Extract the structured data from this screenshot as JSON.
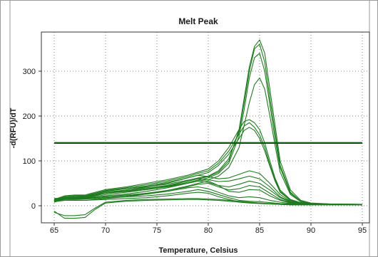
{
  "chart_data": {
    "type": "line",
    "title": "Melt Peak",
    "xlabel": "Temperature, Celsius",
    "ylabel": "-d(RFU)/dT",
    "xlim": [
      65,
      95
    ],
    "ylim": [
      -30,
      380
    ],
    "x_ticks": [
      "65",
      "70",
      "75",
      "80",
      "85",
      "90",
      "95"
    ],
    "y_ticks": [
      "0",
      "100",
      "200",
      "300"
    ],
    "grid": true,
    "threshold": 140,
    "line_color": "#1e7b1e",
    "threshold_color": "#0f5a0f",
    "series": [
      {
        "x": [
          65,
          66,
          67,
          68,
          69,
          70,
          72,
          74,
          76,
          78,
          79,
          80,
          81,
          82,
          83,
          83.5,
          84,
          84.5,
          85,
          85.5,
          86,
          86.5,
          87,
          88,
          89,
          90,
          92,
          95
        ],
        "y": [
          10,
          18,
          20,
          20,
          25,
          30,
          35,
          40,
          45,
          55,
          60,
          65,
          75,
          100,
          170,
          240,
          310,
          355,
          370,
          340,
          260,
          180,
          100,
          35,
          12,
          6,
          4,
          3
        ]
      },
      {
        "x": [
          65,
          66,
          67,
          68,
          69,
          70,
          72,
          74,
          76,
          78,
          79,
          80,
          81,
          82,
          83,
          83.5,
          84,
          84.5,
          85,
          85.5,
          86,
          86.5,
          87,
          88,
          89,
          90,
          92,
          95
        ],
        "y": [
          12,
          20,
          22,
          22,
          28,
          33,
          38,
          43,
          48,
          57,
          62,
          66,
          78,
          105,
          165,
          230,
          300,
          350,
          360,
          320,
          240,
          165,
          90,
          30,
          10,
          5,
          4,
          3
        ]
      },
      {
        "x": [
          65,
          66,
          67,
          68,
          69,
          70,
          72,
          74,
          76,
          78,
          79,
          80,
          81,
          82,
          83,
          83.5,
          84,
          84.5,
          85,
          85.5,
          86,
          86.5,
          87,
          88,
          89,
          90,
          92,
          95
        ],
        "y": [
          8,
          15,
          17,
          18,
          22,
          28,
          33,
          38,
          43,
          52,
          57,
          62,
          72,
          95,
          155,
          215,
          285,
          330,
          340,
          300,
          225,
          150,
          85,
          28,
          10,
          5,
          3,
          3
        ]
      },
      {
        "x": [
          65,
          66,
          67,
          68,
          69,
          70,
          72,
          74,
          76,
          78,
          79,
          80,
          81,
          82,
          83,
          83.5,
          84,
          84.5,
          85,
          85.5,
          86,
          86.5,
          87,
          88,
          89,
          90,
          92,
          95
        ],
        "y": [
          10,
          16,
          18,
          19,
          24,
          28,
          32,
          36,
          42,
          50,
          55,
          58,
          66,
          85,
          130,
          180,
          230,
          270,
          285,
          260,
          200,
          135,
          75,
          25,
          9,
          5,
          3,
          3
        ]
      },
      {
        "x": [
          65,
          66,
          67,
          68,
          69,
          70,
          72,
          74,
          76,
          78,
          79,
          80,
          81,
          82,
          83,
          83.5,
          84,
          84.5,
          85,
          85.5,
          86,
          86.5,
          87,
          88,
          89,
          90,
          92,
          95
        ],
        "y": [
          14,
          22,
          24,
          24,
          30,
          36,
          42,
          50,
          58,
          68,
          75,
          82,
          100,
          130,
          170,
          188,
          192,
          185,
          170,
          140,
          100,
          62,
          35,
          14,
          7,
          4,
          3,
          3
        ]
      },
      {
        "x": [
          65,
          66,
          67,
          68,
          69,
          70,
          72,
          74,
          76,
          78,
          79,
          80,
          81,
          82,
          83,
          83.5,
          84,
          84.5,
          85,
          85.5,
          86,
          86.5,
          87,
          88,
          89,
          90,
          92,
          95
        ],
        "y": [
          12,
          20,
          22,
          22,
          28,
          34,
          40,
          47,
          55,
          65,
          72,
          78,
          95,
          122,
          160,
          178,
          185,
          175,
          158,
          130,
          92,
          58,
          32,
          12,
          6,
          4,
          3,
          3
        ]
      },
      {
        "x": [
          65,
          66,
          67,
          68,
          69,
          70,
          72,
          74,
          76,
          78,
          79,
          80,
          81,
          82,
          83,
          83.5,
          84,
          84.5,
          85,
          85.5,
          86,
          86.5,
          87,
          88,
          89,
          90,
          92,
          95
        ],
        "y": [
          11,
          18,
          20,
          21,
          26,
          32,
          38,
          44,
          52,
          62,
          68,
          74,
          90,
          115,
          150,
          168,
          175,
          168,
          150,
          122,
          88,
          55,
          30,
          12,
          6,
          4,
          3,
          3
        ]
      },
      {
        "x": [
          65,
          66,
          67,
          68,
          69,
          70,
          72,
          74,
          76,
          78,
          79,
          80,
          81,
          82,
          83,
          84,
          85,
          86,
          87,
          88,
          90,
          95
        ],
        "y": [
          15,
          18,
          18,
          18,
          22,
          28,
          35,
          42,
          50,
          62,
          68,
          65,
          60,
          62,
          70,
          78,
          72,
          50,
          25,
          10,
          4,
          3
        ]
      },
      {
        "x": [
          65,
          66,
          67,
          68,
          69,
          70,
          72,
          74,
          76,
          78,
          79,
          80,
          81,
          82,
          83,
          84,
          85,
          86,
          87,
          88,
          90,
          95
        ],
        "y": [
          12,
          16,
          16,
          17,
          20,
          25,
          30,
          36,
          44,
          55,
          60,
          58,
          54,
          55,
          60,
          66,
          60,
          42,
          20,
          9,
          4,
          3
        ]
      },
      {
        "x": [
          65,
          66,
          67,
          68,
          69,
          70,
          72,
          74,
          76,
          78,
          79,
          80,
          81,
          82,
          83,
          84,
          85,
          86,
          87,
          88,
          90,
          95
        ],
        "y": [
          10,
          14,
          14,
          15,
          18,
          22,
          26,
          32,
          40,
          50,
          55,
          52,
          45,
          42,
          48,
          55,
          50,
          35,
          18,
          8,
          4,
          3
        ]
      },
      {
        "x": [
          65,
          66,
          67,
          68,
          69,
          70,
          72,
          74,
          76,
          78,
          79,
          80,
          81,
          82,
          83,
          84,
          85,
          86,
          87,
          88,
          90,
          95
        ],
        "y": [
          14,
          16,
          16,
          16,
          18,
          20,
          24,
          28,
          34,
          42,
          48,
          50,
          42,
          35,
          38,
          45,
          42,
          28,
          14,
          7,
          3,
          3
        ]
      },
      {
        "x": [
          65,
          66,
          67,
          68,
          69,
          70,
          72,
          74,
          76,
          78,
          79,
          80,
          81,
          82,
          83,
          84,
          85,
          86,
          87,
          88,
          90,
          95
        ],
        "y": [
          9,
          12,
          12,
          12,
          14,
          16,
          20,
          26,
          34,
          44,
          50,
          55,
          45,
          32,
          30,
          36,
          35,
          22,
          12,
          6,
          3,
          3
        ]
      },
      {
        "x": [
          65,
          66,
          67,
          68,
          69,
          70,
          72,
          74,
          76,
          78,
          79,
          80,
          81,
          82,
          83,
          84,
          85,
          86,
          87,
          88,
          90,
          95
        ],
        "y": [
          16,
          18,
          18,
          18,
          18,
          20,
          22,
          26,
          32,
          40,
          42,
          38,
          30,
          22,
          18,
          20,
          18,
          12,
          8,
          5,
          3,
          3
        ]
      },
      {
        "x": [
          65,
          66,
          67,
          68,
          69,
          70,
          72,
          74,
          76,
          78,
          79,
          80,
          81,
          82,
          83,
          84,
          85,
          86,
          87,
          88,
          90,
          95
        ],
        "y": [
          13,
          15,
          15,
          15,
          16,
          18,
          20,
          22,
          26,
          32,
          36,
          32,
          25,
          18,
          12,
          10,
          9,
          7,
          5,
          4,
          3,
          3
        ]
      },
      {
        "x": [
          65,
          66,
          67,
          68,
          69,
          70,
          72,
          74,
          76,
          78,
          79,
          80,
          81,
          82,
          83,
          84,
          85,
          86,
          87,
          88,
          90,
          95
        ],
        "y": [
          10,
          12,
          12,
          12,
          13,
          14,
          16,
          18,
          22,
          28,
          30,
          28,
          20,
          14,
          9,
          7,
          6,
          5,
          4,
          3,
          3,
          2
        ]
      },
      {
        "x": [
          65,
          66,
          67,
          68,
          69,
          70,
          72,
          74,
          76,
          78,
          79,
          80,
          81,
          82,
          83,
          84,
          85,
          86,
          87,
          88,
          90,
          95
        ],
        "y": [
          -15,
          -22,
          -22,
          -20,
          -5,
          8,
          12,
          14,
          15,
          16,
          16,
          15,
          14,
          12,
          10,
          8,
          6,
          4,
          3,
          2,
          2,
          2
        ]
      },
      {
        "x": [
          65,
          66,
          67,
          68,
          69,
          70,
          72,
          74,
          76,
          78,
          79,
          80,
          81,
          82,
          83,
          84,
          85,
          86,
          87,
          88,
          90,
          95
        ],
        "y": [
          -12,
          -28,
          -28,
          -26,
          -8,
          6,
          10,
          12,
          13,
          14,
          14,
          13,
          12,
          10,
          8,
          6,
          5,
          4,
          3,
          2,
          2,
          2
        ]
      }
    ]
  }
}
